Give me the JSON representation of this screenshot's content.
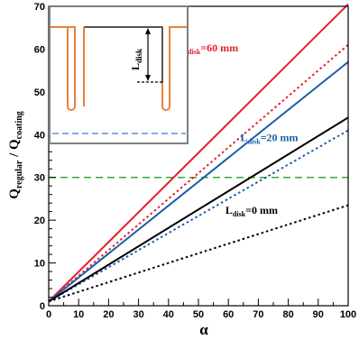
{
  "chart_data": {
    "type": "line",
    "xlabel": "α",
    "ylabel_main": "Q",
    "ylabel_sub_top": "regular",
    "ylabel_mid": " / Q",
    "ylabel_sub_bottom": "coating",
    "xlim": [
      0,
      100
    ],
    "ylim": [
      0,
      70
    ],
    "xticks": [
      0,
      10,
      20,
      30,
      40,
      50,
      60,
      70,
      80,
      90,
      100
    ],
    "yticks": [
      0,
      10,
      20,
      30,
      40,
      50,
      60,
      70
    ],
    "grid": false,
    "colors": {
      "red": "#e3202a",
      "blue": "#1a5ea8",
      "black": "#000000",
      "green": "#33aa33",
      "inset_orange": "#e8823a",
      "inset_blue": "#3b7fd0"
    },
    "series": [
      {
        "color": "red",
        "style": "solid",
        "x": [
          0,
          100
        ],
        "y": [
          1,
          70.5
        ]
      },
      {
        "color": "red",
        "style": "dotted",
        "x": [
          0,
          100
        ],
        "y": [
          1,
          61
        ]
      },
      {
        "color": "blue",
        "style": "solid",
        "x": [
          0,
          100
        ],
        "y": [
          1,
          57
        ]
      },
      {
        "color": "blue",
        "style": "dotted",
        "x": [
          0,
          100
        ],
        "y": [
          1,
          41
        ]
      },
      {
        "color": "black",
        "style": "solid",
        "x": [
          0,
          100
        ],
        "y": [
          1,
          44
        ]
      },
      {
        "color": "black",
        "style": "dotted",
        "x": [
          0,
          100
        ],
        "y": [
          1,
          23.5
        ]
      }
    ],
    "reference_line": {
      "color": "green",
      "style": "dashed",
      "y": 30
    },
    "annotations": [
      {
        "main": "L",
        "sub": "disk",
        "rest": "=60 mm",
        "color": "red",
        "x": 44,
        "y": 59.5
      },
      {
        "main": "L",
        "sub": "disk",
        "rest": "=20 mm",
        "color": "blue",
        "x": 64,
        "y": 38.5
      },
      {
        "main": "L",
        "sub": "disk",
        "rest": "=0 mm",
        "color": "black",
        "x": 59,
        "y": 21.5
      }
    ],
    "inset": {
      "label_main": "L",
      "label_sub": "disk"
    }
  }
}
